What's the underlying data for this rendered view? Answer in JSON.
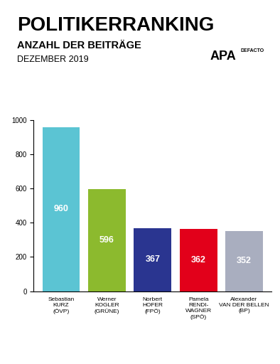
{
  "chart_data": {
    "type": "bar",
    "title": "POLITIKERRANKING",
    "subtitle": "ANZAHL DER BEITRÄGE",
    "annotations": [
      "DEZEMBER 2019",
      "APA",
      "DEFACTO"
    ],
    "categories": [
      "Sebastian\nKURZ\n(ÖVP)",
      "Werner\nKOGLER\n(GRÜNE)",
      "Norbert\nHOFER\n(FPÖ)",
      "Pamela\nRENDI-\nWAGNER\n(SPÖ)",
      "Alexander\nVAN DER BELLEN\n(BP)"
    ],
    "values": [
      960,
      596,
      367,
      362,
      352
    ],
    "colors": [
      "#5bc4d3",
      "#8cba2e",
      "#2a3590",
      "#e2001a",
      "#a9aebf"
    ],
    "ylim": [
      0,
      1000
    ],
    "yticks": [
      0,
      200,
      400,
      600,
      800,
      1000
    ],
    "grid": false,
    "data_labels": true
  }
}
